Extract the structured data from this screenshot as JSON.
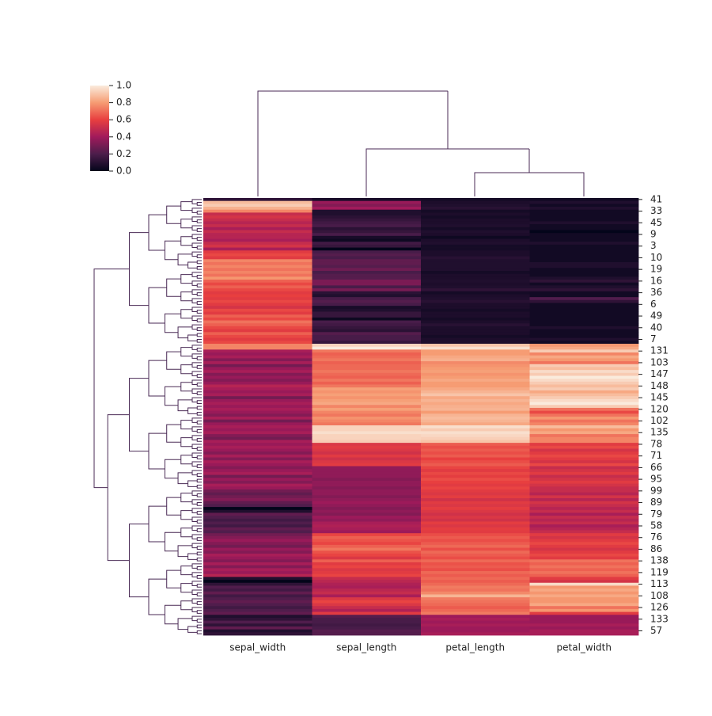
{
  "chart_data": {
    "type": "heatmap",
    "x_categories": [
      "sepal_width",
      "sepal_length",
      "petal_length",
      "petal_width"
    ],
    "y_categories": [
      "41",
      null,
      null,
      null,
      "33",
      null,
      null,
      null,
      "45",
      null,
      null,
      null,
      "9",
      null,
      null,
      null,
      "3",
      null,
      null,
      null,
      "10",
      null,
      null,
      null,
      "19",
      null,
      null,
      null,
      "16",
      null,
      null,
      null,
      "36",
      null,
      null,
      null,
      "6",
      null,
      null,
      null,
      "49",
      null,
      null,
      null,
      "40",
      null,
      null,
      null,
      "7",
      null,
      null,
      null,
      "131",
      null,
      null,
      null,
      "103",
      null,
      null,
      null,
      "147",
      null,
      null,
      null,
      "148",
      null,
      null,
      null,
      "145",
      null,
      null,
      null,
      "120",
      null,
      null,
      null,
      "102",
      null,
      null,
      null,
      "135",
      null,
      null,
      null,
      "78",
      null,
      null,
      null,
      "71",
      null,
      null,
      null,
      "66",
      null,
      null,
      null,
      "95",
      null,
      null,
      null,
      "99",
      null,
      null,
      null,
      "89",
      null,
      null,
      null,
      "79",
      null,
      null,
      null,
      "58",
      null,
      null,
      null,
      "76",
      null,
      null,
      null,
      "86",
      null,
      null,
      null,
      "138",
      null,
      null,
      null,
      "119",
      null,
      null,
      null,
      "113",
      null,
      null,
      null,
      "108",
      null,
      null,
      null,
      "126",
      null,
      null,
      null,
      "133",
      null,
      null,
      null,
      "57",
      null
    ],
    "values": [
      [
        0.12,
        0.06,
        0.05,
        0.04
      ],
      [
        0.88,
        0.38,
        0.07,
        0.08
      ],
      [
        0.92,
        0.33,
        0.08,
        0.04
      ],
      [
        0.85,
        0.4,
        0.1,
        0.08
      ],
      [
        0.75,
        0.08,
        0.05,
        0.04
      ],
      [
        0.5,
        0.08,
        0.07,
        0.04
      ],
      [
        0.54,
        0.11,
        0.05,
        0.04
      ],
      [
        0.5,
        0.14,
        0.07,
        0.04
      ],
      [
        0.46,
        0.17,
        0.07,
        0.08
      ],
      [
        0.5,
        0.19,
        0.08,
        0.04
      ],
      [
        0.42,
        0.11,
        0.05,
        0.04
      ],
      [
        0.5,
        0.14,
        0.08,
        0.0
      ],
      [
        0.46,
        0.19,
        0.07,
        0.04
      ],
      [
        0.46,
        0.06,
        0.03,
        0.04
      ],
      [
        0.42,
        0.03,
        0.07,
        0.04
      ],
      [
        0.5,
        0.17,
        0.08,
        0.08
      ],
      [
        0.54,
        0.14,
        0.05,
        0.04
      ],
      [
        0.42,
        0.0,
        0.05,
        0.04
      ],
      [
        0.58,
        0.19,
        0.07,
        0.04
      ],
      [
        0.62,
        0.22,
        0.07,
        0.04
      ],
      [
        0.58,
        0.19,
        0.1,
        0.04
      ],
      [
        0.75,
        0.25,
        0.08,
        0.04
      ],
      [
        0.71,
        0.25,
        0.08,
        0.08
      ],
      [
        0.75,
        0.22,
        0.08,
        0.08
      ],
      [
        0.71,
        0.28,
        0.08,
        0.04
      ],
      [
        0.75,
        0.19,
        0.05,
        0.04
      ],
      [
        0.71,
        0.22,
        0.07,
        0.04
      ],
      [
        0.79,
        0.22,
        0.07,
        0.08
      ],
      [
        0.67,
        0.31,
        0.08,
        0.12
      ],
      [
        0.62,
        0.31,
        0.07,
        0.04
      ],
      [
        0.67,
        0.19,
        0.08,
        0.08
      ],
      [
        0.62,
        0.3,
        0.12,
        0.12
      ],
      [
        0.58,
        0.11,
        0.05,
        0.04
      ],
      [
        0.6,
        0.08,
        0.07,
        0.04
      ],
      [
        0.58,
        0.19,
        0.08,
        0.21
      ],
      [
        0.62,
        0.22,
        0.1,
        0.12
      ],
      [
        0.58,
        0.19,
        0.07,
        0.04
      ],
      [
        0.54,
        0.06,
        0.07,
        0.04
      ],
      [
        0.62,
        0.08,
        0.05,
        0.04
      ],
      [
        0.58,
        0.14,
        0.07,
        0.04
      ],
      [
        0.67,
        0.14,
        0.07,
        0.04
      ],
      [
        0.62,
        0.03,
        0.05,
        0.04
      ],
      [
        0.71,
        0.19,
        0.07,
        0.04
      ],
      [
        0.67,
        0.17,
        0.1,
        0.04
      ],
      [
        0.62,
        0.14,
        0.07,
        0.08
      ],
      [
        0.58,
        0.11,
        0.07,
        0.04
      ],
      [
        0.67,
        0.22,
        0.07,
        0.04
      ],
      [
        0.62,
        0.19,
        0.05,
        0.04
      ],
      [
        0.58,
        0.19,
        0.07,
        0.08
      ],
      [
        0.62,
        0.14,
        0.07,
        0.04
      ],
      [
        0.75,
        0.94,
        0.9,
        0.79
      ],
      [
        0.75,
        1.0,
        0.97,
        0.83
      ],
      [
        0.42,
        0.72,
        0.8,
        0.92
      ],
      [
        0.38,
        0.67,
        0.8,
        0.75
      ],
      [
        0.42,
        0.69,
        0.83,
        0.83
      ],
      [
        0.33,
        0.72,
        0.85,
        0.79
      ],
      [
        0.42,
        0.67,
        0.76,
        0.71
      ],
      [
        0.29,
        0.69,
        0.78,
        0.92
      ],
      [
        0.38,
        0.69,
        0.8,
        0.88
      ],
      [
        0.42,
        0.72,
        0.81,
        0.96
      ],
      [
        0.33,
        0.69,
        0.78,
        0.92
      ],
      [
        0.38,
        0.67,
        0.8,
        1.0
      ],
      [
        0.33,
        0.72,
        0.83,
        0.96
      ],
      [
        0.38,
        0.67,
        0.8,
        0.92
      ],
      [
        0.46,
        0.72,
        0.8,
        0.88
      ],
      [
        0.42,
        0.81,
        0.83,
        0.92
      ],
      [
        0.38,
        0.78,
        0.86,
        0.83
      ],
      [
        0.42,
        0.81,
        0.9,
        0.88
      ],
      [
        0.29,
        0.78,
        0.83,
        0.92
      ],
      [
        0.38,
        0.81,
        0.86,
        0.96
      ],
      [
        0.42,
        0.83,
        0.83,
        1.0
      ],
      [
        0.38,
        0.75,
        0.85,
        0.92
      ],
      [
        0.42,
        0.81,
        0.86,
        0.71
      ],
      [
        0.38,
        0.75,
        0.8,
        0.62
      ],
      [
        0.33,
        0.72,
        0.86,
        0.71
      ],
      [
        0.42,
        0.78,
        0.88,
        0.79
      ],
      [
        0.29,
        0.75,
        0.86,
        0.71
      ],
      [
        0.38,
        0.72,
        0.83,
        0.75
      ],
      [
        0.42,
        0.94,
        0.97,
        0.88
      ],
      [
        0.38,
        0.94,
        0.92,
        0.79
      ],
      [
        0.42,
        0.97,
        0.97,
        0.83
      ],
      [
        0.33,
        0.94,
        0.95,
        0.71
      ],
      [
        0.29,
        0.94,
        0.93,
        0.75
      ],
      [
        0.42,
        0.92,
        0.9,
        0.75
      ],
      [
        0.38,
        0.56,
        0.66,
        0.58
      ],
      [
        0.42,
        0.58,
        0.63,
        0.62
      ],
      [
        0.38,
        0.56,
        0.66,
        0.54
      ],
      [
        0.33,
        0.53,
        0.63,
        0.58
      ],
      [
        0.42,
        0.58,
        0.66,
        0.62
      ],
      [
        0.33,
        0.53,
        0.6,
        0.58
      ],
      [
        0.42,
        0.56,
        0.63,
        0.54
      ],
      [
        0.38,
        0.58,
        0.66,
        0.62
      ],
      [
        0.33,
        0.36,
        0.61,
        0.5
      ],
      [
        0.38,
        0.36,
        0.58,
        0.54
      ],
      [
        0.42,
        0.36,
        0.62,
        0.58
      ],
      [
        0.29,
        0.36,
        0.59,
        0.5
      ],
      [
        0.38,
        0.33,
        0.63,
        0.54
      ],
      [
        0.33,
        0.36,
        0.6,
        0.58
      ],
      [
        0.42,
        0.36,
        0.58,
        0.54
      ],
      [
        0.38,
        0.33,
        0.61,
        0.5
      ],
      [
        0.29,
        0.36,
        0.58,
        0.5
      ],
      [
        0.25,
        0.36,
        0.56,
        0.46
      ],
      [
        0.29,
        0.33,
        0.59,
        0.54
      ],
      [
        0.33,
        0.36,
        0.53,
        0.46
      ],
      [
        0.25,
        0.39,
        0.58,
        0.54
      ],
      [
        0.21,
        0.36,
        0.56,
        0.5
      ],
      [
        0.0,
        0.33,
        0.59,
        0.46
      ],
      [
        0.08,
        0.36,
        0.56,
        0.5
      ],
      [
        0.25,
        0.33,
        0.53,
        0.42
      ],
      [
        0.21,
        0.39,
        0.56,
        0.5
      ],
      [
        0.17,
        0.36,
        0.53,
        0.46
      ],
      [
        0.21,
        0.42,
        0.59,
        0.5
      ],
      [
        0.17,
        0.44,
        0.56,
        0.42
      ],
      [
        0.25,
        0.42,
        0.59,
        0.46
      ],
      [
        0.21,
        0.39,
        0.58,
        0.5
      ],
      [
        0.29,
        0.61,
        0.63,
        0.58
      ],
      [
        0.33,
        0.67,
        0.66,
        0.54
      ],
      [
        0.38,
        0.64,
        0.63,
        0.58
      ],
      [
        0.33,
        0.61,
        0.66,
        0.62
      ],
      [
        0.29,
        0.67,
        0.69,
        0.58
      ],
      [
        0.38,
        0.72,
        0.63,
        0.54
      ],
      [
        0.33,
        0.64,
        0.69,
        0.58
      ],
      [
        0.42,
        0.61,
        0.66,
        0.62
      ],
      [
        0.38,
        0.56,
        0.63,
        0.58
      ],
      [
        0.33,
        0.67,
        0.69,
        0.71
      ],
      [
        0.42,
        0.58,
        0.64,
        0.67
      ],
      [
        0.33,
        0.61,
        0.66,
        0.71
      ],
      [
        0.42,
        0.56,
        0.63,
        0.67
      ],
      [
        0.38,
        0.58,
        0.69,
        0.71
      ],
      [
        0.46,
        0.61,
        0.66,
        0.67
      ],
      [
        0.08,
        0.5,
        0.69,
        0.58
      ],
      [
        0.0,
        0.47,
        0.66,
        0.54
      ],
      [
        0.12,
        0.44,
        0.69,
        0.96
      ],
      [
        0.21,
        0.42,
        0.73,
        0.79
      ],
      [
        0.17,
        0.47,
        0.71,
        0.83
      ],
      [
        0.25,
        0.5,
        0.76,
        0.79
      ],
      [
        0.17,
        0.42,
        0.86,
        0.83
      ],
      [
        0.21,
        0.56,
        0.73,
        0.79
      ],
      [
        0.25,
        0.61,
        0.71,
        0.79
      ],
      [
        0.21,
        0.56,
        0.69,
        0.83
      ],
      [
        0.17,
        0.5,
        0.66,
        0.71
      ],
      [
        0.21,
        0.44,
        0.69,
        0.79
      ],
      [
        0.25,
        0.58,
        0.73,
        0.58
      ],
      [
        0.08,
        0.22,
        0.39,
        0.38
      ],
      [
        0.12,
        0.19,
        0.42,
        0.38
      ],
      [
        0.21,
        0.19,
        0.39,
        0.38
      ],
      [
        0.12,
        0.17,
        0.42,
        0.42
      ],
      [
        0.25,
        0.19,
        0.39,
        0.38
      ],
      [
        0.08,
        0.22,
        0.39,
        0.42
      ],
      [
        0.12,
        0.22,
        0.42,
        0.42
      ]
    ],
    "colormap": [
      "#03051a",
      "#4c1d4b",
      "#a11a5b",
      "#e83f3f",
      "#f69c73",
      "#faebdd"
    ],
    "clim": [
      0,
      1
    ],
    "cticks": [
      {
        "value": 0,
        "label": "0.0"
      },
      0.2,
      0.4,
      0.6,
      0.8,
      {
        "value": 1,
        "label": "1.0"
      }
    ]
  }
}
